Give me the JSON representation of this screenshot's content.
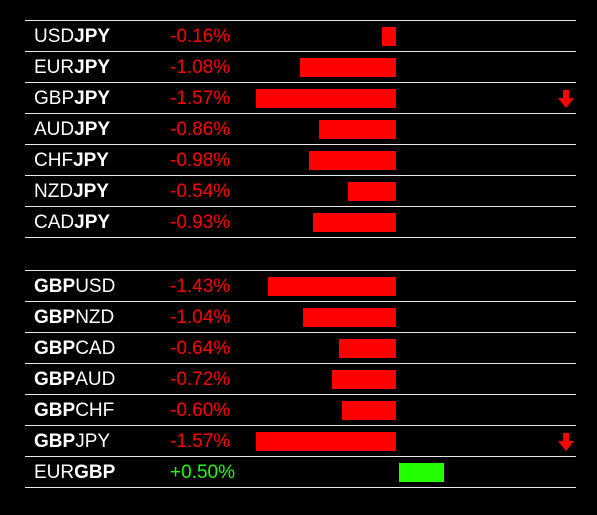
{
  "colors": {
    "negative": "#ff0000",
    "positive": "#22ff00",
    "text": "#ffffff",
    "background": "#000000"
  },
  "max_abs_change": 1.57,
  "groups": [
    {
      "name": "jpy-pairs",
      "rows": [
        {
          "base": "USD",
          "quote": "JPY",
          "bold": "quote",
          "change_text": "-0.16%",
          "change": -0.16,
          "arrow": ""
        },
        {
          "base": "EUR",
          "quote": "JPY",
          "bold": "quote",
          "change_text": "-1.08%",
          "change": -1.08,
          "arrow": ""
        },
        {
          "base": "GBP",
          "quote": "JPY",
          "bold": "quote",
          "change_text": "-1.57%",
          "change": -1.57,
          "arrow": "down-arrow-icon"
        },
        {
          "base": "AUD",
          "quote": "JPY",
          "bold": "quote",
          "change_text": "-0.86%",
          "change": -0.86,
          "arrow": ""
        },
        {
          "base": "CHF",
          "quote": "JPY",
          "bold": "quote",
          "change_text": "-0.98%",
          "change": -0.98,
          "arrow": ""
        },
        {
          "base": "NZD",
          "quote": "JPY",
          "bold": "quote",
          "change_text": "-0.54%",
          "change": -0.54,
          "arrow": ""
        },
        {
          "base": "CAD",
          "quote": "JPY",
          "bold": "quote",
          "change_text": "-0.93%",
          "change": -0.93,
          "arrow": ""
        }
      ]
    },
    {
      "name": "gbp-pairs",
      "rows": [
        {
          "base": "GBP",
          "quote": "USD",
          "bold": "base",
          "change_text": "-1.43%",
          "change": -1.43,
          "arrow": ""
        },
        {
          "base": "GBP",
          "quote": "NZD",
          "bold": "base",
          "change_text": "-1.04%",
          "change": -1.04,
          "arrow": ""
        },
        {
          "base": "GBP",
          "quote": "CAD",
          "bold": "base",
          "change_text": "-0.64%",
          "change": -0.64,
          "arrow": ""
        },
        {
          "base": "GBP",
          "quote": "AUD",
          "bold": "base",
          "change_text": "-0.72%",
          "change": -0.72,
          "arrow": ""
        },
        {
          "base": "GBP",
          "quote": "CHF",
          "bold": "base",
          "change_text": "-0.60%",
          "change": -0.6,
          "arrow": ""
        },
        {
          "base": "GBP",
          "quote": "JPY",
          "bold": "base",
          "change_text": "-1.57%",
          "change": -1.57,
          "arrow": "down-arrow-icon"
        },
        {
          "base": "EUR",
          "quote": "GBP",
          "bold": "quote",
          "change_text": "+0.50%",
          "change": 0.5,
          "arrow": ""
        }
      ]
    }
  ]
}
